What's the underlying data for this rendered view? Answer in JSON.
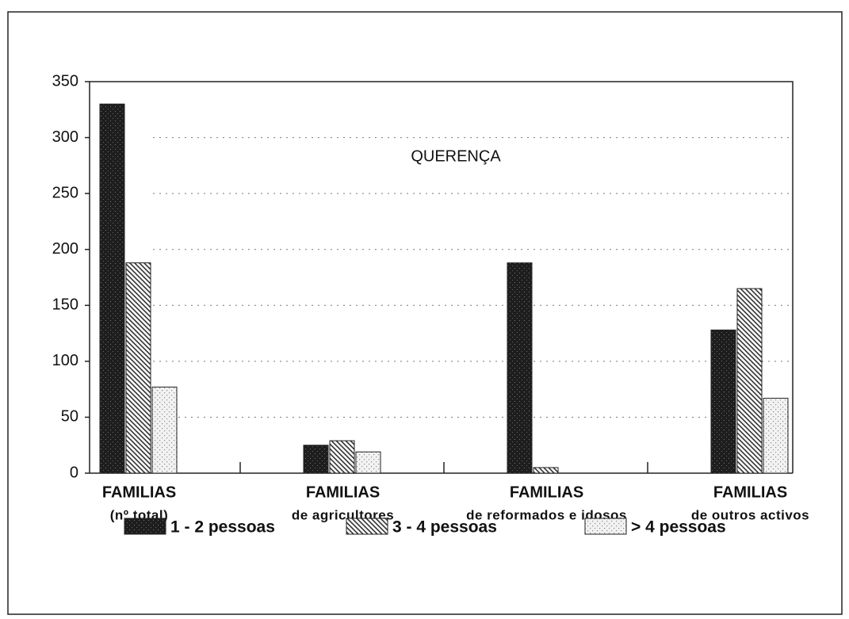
{
  "chart_data": {
    "type": "bar",
    "title": "QUERENÇA",
    "categories": [
      [
        "FAMILIAS",
        "(nº total)"
      ],
      [
        "FAMILIAS",
        "de agricultores"
      ],
      [
        "FAMILIAS",
        "de reformados e idosos"
      ],
      [
        "FAMILIAS",
        "de outros activos"
      ]
    ],
    "series": [
      {
        "name": "1 - 2 pessoas",
        "color": "#1e1e1e",
        "pattern": "solid",
        "values": [
          330,
          25,
          188,
          128
        ]
      },
      {
        "name": "3 - 4 pessoas",
        "color": "#333333",
        "pattern": "hatch",
        "values": [
          188,
          29,
          5,
          165
        ]
      },
      {
        "name": "> 4 pessoas",
        "color": "#8a8a8a",
        "pattern": "dots",
        "values": [
          77,
          19,
          0,
          67
        ]
      }
    ],
    "ylim": [
      0,
      350
    ],
    "yticks": [
      0,
      50,
      100,
      150,
      200,
      250,
      300,
      350
    ],
    "grid": true
  }
}
